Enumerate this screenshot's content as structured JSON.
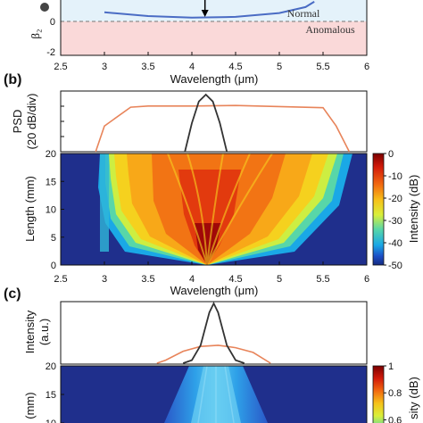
{
  "chart_data": [
    {
      "panel": "a",
      "type": "line",
      "ylabel": "β₂",
      "xlabel": "Wavelength (μm)",
      "xlim": [
        2.5,
        6
      ],
      "x_ticks": [
        "2.5",
        "3",
        "3.5",
        "4",
        "4.5",
        "5",
        "5.5",
        "6"
      ],
      "y_ticks": [
        "0",
        "-2"
      ],
      "regions": [
        "Normal",
        "Anomalous"
      ],
      "series": [
        {
          "x": [
            3.0,
            3.5,
            4.0,
            4.5,
            5.0,
            5.3,
            5.4
          ],
          "y": [
            0.6,
            0.35,
            0.25,
            0.3,
            0.55,
            0.95,
            1.3
          ]
        }
      ],
      "zero_line": 0,
      "arrow_x": 4.15
    },
    {
      "panel": "b",
      "label": "(b)",
      "type": "line",
      "ylabel": "PSD",
      "ylabel2": "(20 dB/div)",
      "spectrum_out": {
        "x": [
          2.9,
          3.0,
          3.3,
          3.5,
          4.0,
          4.5,
          5.0,
          5.5,
          5.65,
          5.8
        ],
        "y": [
          0.0,
          0.45,
          0.78,
          0.8,
          0.8,
          0.81,
          0.79,
          0.77,
          0.45,
          0.0
        ]
      },
      "spectrum_in": {
        "x": [
          3.92,
          4.0,
          4.08,
          4.16,
          4.24,
          4.32,
          4.4
        ],
        "y": [
          0.0,
          0.5,
          0.88,
          1.0,
          0.88,
          0.5,
          0.0
        ]
      },
      "colors": {
        "out": "#e8845a",
        "in": "#333333"
      }
    },
    {
      "panel": "b-map",
      "type": "heatmap",
      "ylabel": "Length (mm)",
      "xlabel": "Wavelength (μm)",
      "xlim": [
        2.5,
        6
      ],
      "ylim": [
        0,
        20
      ],
      "x_ticks": [
        "2.5",
        "3",
        "3.5",
        "4",
        "4.5",
        "5",
        "5.5",
        "6"
      ],
      "y_ticks": [
        "0",
        "5",
        "10",
        "15",
        "20"
      ],
      "colorbar": {
        "label": "Intensity (dB)",
        "ticks": [
          "0",
          "-10",
          "-20",
          "-30",
          "-40",
          "-50"
        ],
        "range": [
          -50,
          0
        ]
      }
    },
    {
      "panel": "c",
      "label": "(c)",
      "type": "line",
      "ylabel": "Intensity",
      "ylabel2": "(a.u.)",
      "pulse_in": {
        "x": [
          3.9,
          4.0,
          4.1,
          4.2,
          4.25,
          4.3,
          4.4,
          4.5,
          4.6
        ],
        "y": [
          0.0,
          0.05,
          0.3,
          0.85,
          1.0,
          0.85,
          0.3,
          0.05,
          0.0
        ]
      },
      "pulse_out": {
        "x": [
          3.6,
          3.7,
          3.9,
          4.1,
          4.3,
          4.5,
          4.7,
          4.9
        ],
        "y": [
          0.0,
          0.05,
          0.2,
          0.28,
          0.3,
          0.26,
          0.18,
          0.0
        ]
      },
      "colors": {
        "in": "#333333",
        "out": "#e8845a"
      }
    },
    {
      "panel": "c-map",
      "type": "heatmap",
      "ylabel": "n (mm)",
      "y_ticks": [
        "10",
        "15",
        "20"
      ],
      "colorbar": {
        "label": "sity (dB)",
        "ticks": [
          "1",
          "0.8",
          "0.6"
        ]
      }
    }
  ]
}
